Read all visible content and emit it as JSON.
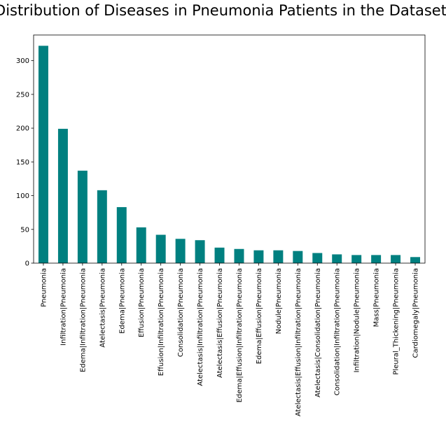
{
  "chart_data": {
    "type": "bar",
    "title": "Distribution of Diseases in Pneumonia Patients in the Dataset",
    "xlabel": "",
    "ylabel": "",
    "ylim": [
      0,
      338
    ],
    "yticks": [
      0,
      50,
      100,
      150,
      200,
      250,
      300
    ],
    "grid": false,
    "legend": "none",
    "color": "#008080",
    "categories": [
      "Pneumonia",
      "Infiltration|Pneumonia",
      "Edema|Infiltration|Pneumonia",
      "Atelectasis|Pneumonia",
      "Edema|Pneumonia",
      "Effusion|Pneumonia",
      "Effusion|Infiltration|Pneumonia",
      "Consolidation|Pneumonia",
      "Atelectasis|Infiltration|Pneumonia",
      "Atelectasis|Effusion|Pneumonia",
      "Edema|Effusion|Infiltration|Pneumonia",
      "Edema|Effusion|Pneumonia",
      "Nodule|Pneumonia",
      "Atelectasis|Effusion|Infiltration|Pneumonia",
      "Atelectasis|Consolidation|Pneumonia",
      "Consolidation|Infiltration|Pneumonia",
      "Infiltration|Nodule|Pneumonia",
      "Mass|Pneumonia",
      "Pleural_Thickening|Pneumonia",
      "Cardiomegaly|Pneumonia"
    ],
    "values": [
      322,
      199,
      137,
      108,
      83,
      53,
      42,
      36,
      34,
      23,
      21,
      19,
      19,
      18,
      15,
      13,
      12,
      12,
      12,
      9
    ]
  }
}
